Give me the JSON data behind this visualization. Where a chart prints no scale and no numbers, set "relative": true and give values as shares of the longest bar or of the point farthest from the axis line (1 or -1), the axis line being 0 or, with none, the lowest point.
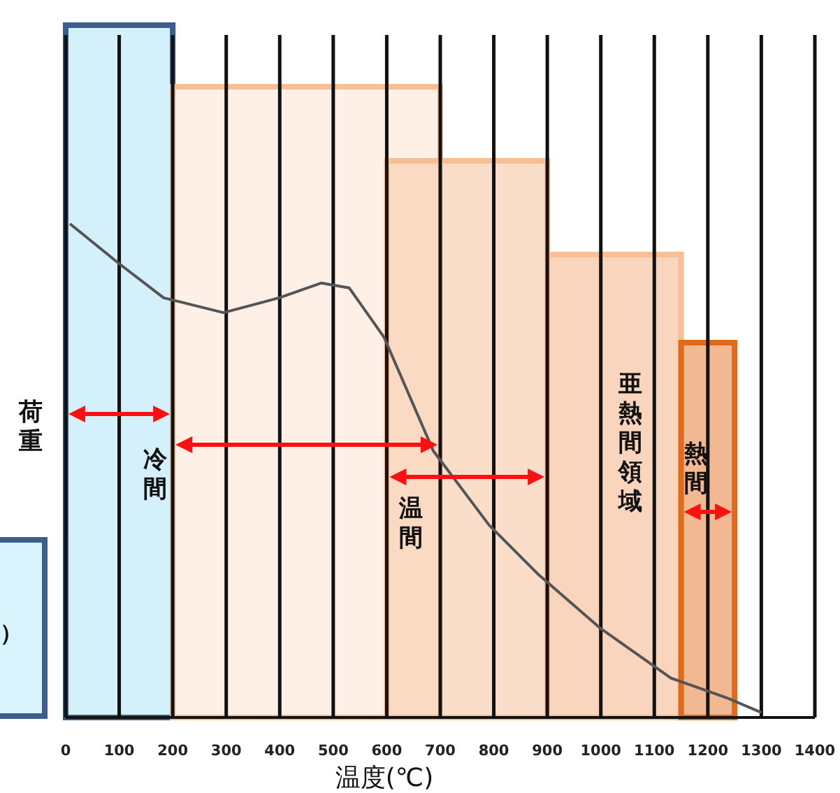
{
  "chart_data": {
    "type": "line",
    "relative": true,
    "xlabel": "温度(℃)",
    "ylabel": "荷重",
    "x": [
      8,
      99,
      183,
      295,
      399,
      478,
      530,
      595,
      687,
      791,
      883,
      1000,
      1131,
      1235,
      1300
    ],
    "series": [
      {
        "color": "#555555",
        "values": [
          1.0,
          0.92,
          0.85,
          0.82,
          0.85,
          0.88,
          0.87,
          0.77,
          0.54,
          0.39,
          0.29,
          0.18,
          0.08,
          0.04,
          0.01
        ]
      }
    ],
    "xlim": [
      0,
      1400
    ],
    "xticks": [
      0,
      100,
      200,
      300,
      400,
      500,
      600,
      700,
      800,
      900,
      1000,
      1100,
      1200,
      1300,
      1400
    ],
    "grid": "x",
    "marker": "none",
    "line_style": "solid",
    "bands": [
      {
        "axis": "x",
        "from": 0,
        "to": 200,
        "color": "#c6ecf9"
      },
      {
        "axis": "x",
        "from": 200,
        "to": 700,
        "label": "冷間",
        "color": "#fdeadf"
      },
      {
        "axis": "x",
        "from": 600,
        "to": 900,
        "label": "温間",
        "color": "#f9d3b8"
      },
      {
        "axis": "x",
        "from": 900,
        "to": 1150,
        "label": "亜熱間領域",
        "color": "#f6c7a5"
      },
      {
        "axis": "x",
        "from": 1150,
        "to": 1250,
        "label": "熱間",
        "color": "#eda06c"
      }
    ],
    "annotations": [
      "）"
    ]
  }
}
